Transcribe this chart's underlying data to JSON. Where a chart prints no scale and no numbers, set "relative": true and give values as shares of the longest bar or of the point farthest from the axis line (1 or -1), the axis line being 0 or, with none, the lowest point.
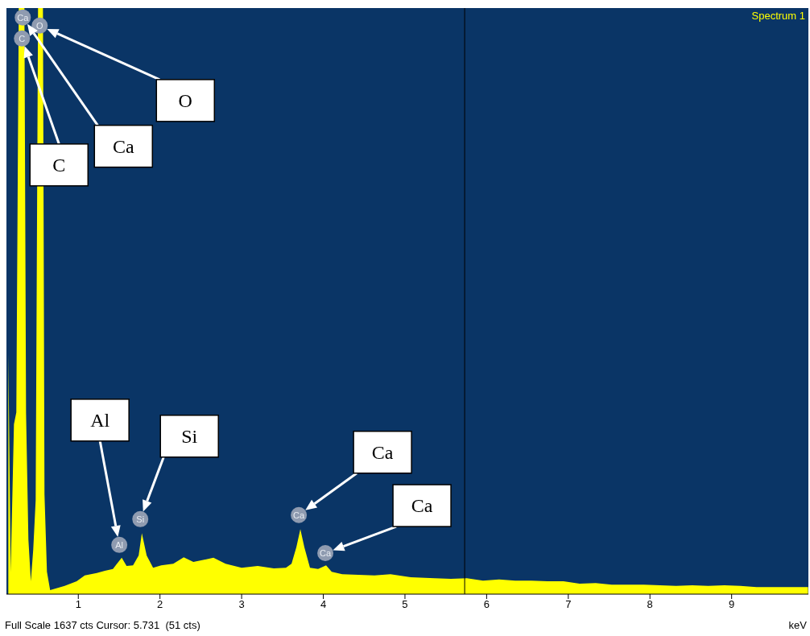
{
  "chart_data": {
    "type": "area",
    "relative": true,
    "xlabel": "keV",
    "xlim": [
      0.12,
      9.94
    ],
    "xticks": [
      1,
      2,
      3,
      4,
      5,
      6,
      7,
      8,
      9
    ],
    "grid": false,
    "legend": "top right",
    "x": [
      0.143,
      0.172,
      0.212,
      0.241,
      0.271,
      0.34,
      0.36,
      0.389,
      0.419,
      0.448,
      0.478,
      0.507,
      0.567,
      0.586,
      0.616,
      0.655,
      0.833,
      0.98,
      1.079,
      1.227,
      1.325,
      1.424,
      1.473,
      1.532,
      1.591,
      1.67,
      1.739,
      1.778,
      1.837,
      1.916,
      2.015,
      2.163,
      2.291,
      2.409,
      2.655,
      2.803,
      3.0,
      3.197,
      3.394,
      3.542,
      3.611,
      3.67,
      3.719,
      3.768,
      3.837,
      3.936,
      4.034,
      4.103,
      4.232,
      4.429,
      4.626,
      4.823,
      5.069,
      5.365,
      5.562,
      5.759,
      5.956,
      6.153,
      6.35,
      6.547,
      6.744,
      6.941,
      7.138,
      7.335,
      7.532,
      7.729,
      7.926,
      8.123,
      8.32,
      8.517,
      8.714,
      8.911,
      9.108,
      9.305,
      9.502,
      9.7,
      9.936
    ],
    "series": [
      {
        "name": "Spectrum 1",
        "color": "#ffff00",
        "values": [
          0.41,
          0.038,
          0.29,
          0.31,
          1,
          1,
          0.31,
          0.093,
          0.022,
          0.076,
          0.16,
          1,
          1,
          0.17,
          0.038,
          0.007,
          0.014,
          0.022,
          0.032,
          0.036,
          0.04,
          0.043,
          0.052,
          0.062,
          0.048,
          0.049,
          0.066,
          0.104,
          0.066,
          0.045,
          0.049,
          0.052,
          0.063,
          0.055,
          0.062,
          0.052,
          0.045,
          0.048,
          0.044,
          0.045,
          0.052,
          0.08,
          0.111,
          0.08,
          0.045,
          0.043,
          0.049,
          0.038,
          0.034,
          0.033,
          0.032,
          0.034,
          0.029,
          0.027,
          0.026,
          0.027,
          0.023,
          0.025,
          0.023,
          0.023,
          0.022,
          0.022,
          0.018,
          0.019,
          0.016,
          0.016,
          0.016,
          0.015,
          0.014,
          0.015,
          0.014,
          0.015,
          0.014,
          0.012,
          0.012,
          0.012,
          0.012
        ]
      }
    ],
    "ref_lines": [
      {
        "axis": "x",
        "value": 5.731,
        "label": null,
        "color": "#000000"
      }
    ],
    "annotations": [
      {
        "text": "O",
        "x": 0.527,
        "y": 0.97
      },
      {
        "text": "Ca",
        "x": 0.32,
        "y": 0.984
      },
      {
        "text": "C",
        "x": 0.31,
        "y": 0.948
      },
      {
        "text": "Al",
        "x": 1.502,
        "y": 0.084
      },
      {
        "text": "Si",
        "x": 1.759,
        "y": 0.128
      },
      {
        "text": "Ca",
        "x": 3.7,
        "y": 0.135
      },
      {
        "text": "Ca",
        "x": 4.025,
        "y": 0.07
      },
      "Full Scale 1637 cts Cursor: 5.731  (51 cts)"
    ]
  }
}
